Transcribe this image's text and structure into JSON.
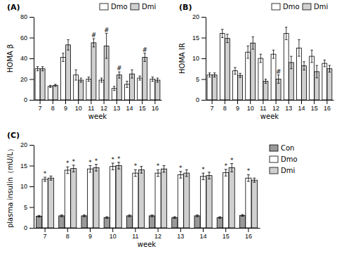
{
  "chart_data": [
    {
      "type": "bar",
      "title": "(A)",
      "x_label": "week",
      "y_label": "HOMA β",
      "categories": [
        7,
        8,
        9,
        10,
        11,
        12,
        13,
        14,
        15,
        16
      ],
      "series": [
        {
          "name": "Dmo",
          "color": "white",
          "values": [
            30,
            13,
            41,
            24,
            20,
            19,
            11,
            15,
            21,
            20
          ],
          "errors": [
            2,
            1,
            4,
            5,
            2,
            2,
            2,
            3,
            2,
            2
          ]
        },
        {
          "name": "Dmi",
          "color": "#d0d0d0",
          "values": [
            30,
            14,
            53,
            19,
            55,
            52,
            24,
            25,
            41,
            19
          ],
          "errors": [
            2,
            1,
            5,
            2,
            4,
            12,
            3,
            4,
            4,
            2
          ]
        }
      ],
      "annotations": [
        {
          "text": "#",
          "category": 11,
          "series": "Dmi"
        },
        {
          "text": "#",
          "category": 12,
          "series": "Dmi"
        },
        {
          "text": "#",
          "category": 13,
          "series": "Dmi"
        },
        {
          "text": "#",
          "category": 15,
          "series": "Dmi"
        }
      ],
      "ylim": [
        0,
        80
      ],
      "yticks": [
        0,
        20,
        40,
        60,
        80
      ],
      "legend": "upper right"
    },
    {
      "type": "bar",
      "title": "(B)",
      "x_label": "week",
      "y_label": "HOMA IR",
      "categories": [
        7,
        8,
        9,
        10,
        11,
        12,
        13,
        14,
        15,
        16
      ],
      "series": [
        {
          "name": "Dmo",
          "color": "white",
          "values": [
            6.0,
            16.0,
            7.0,
            11.5,
            10.0,
            11.0,
            16.0,
            12.5,
            10.5,
            8.8
          ],
          "errors": [
            0.5,
            1.0,
            0.8,
            1.5,
            1.0,
            1.0,
            1.5,
            2.0,
            1.5,
            0.8
          ]
        },
        {
          "name": "Dmi",
          "color": "#d0d0d0",
          "values": [
            6.0,
            14.8,
            5.9,
            13.7,
            4.5,
            5.0,
            9.0,
            8.2,
            6.8,
            7.5
          ],
          "errors": [
            0.5,
            1.0,
            0.5,
            1.5,
            0.5,
            1.0,
            1.5,
            1.0,
            1.5,
            0.8
          ]
        }
      ],
      "annotations": [
        {
          "text": "#",
          "category": 12,
          "series": "Dmi"
        }
      ],
      "ylim": [
        0,
        20
      ],
      "yticks": [
        0,
        5,
        10,
        15,
        20
      ],
      "legend": "upper right"
    },
    {
      "type": "bar",
      "title": "(C)",
      "x_label": "week",
      "y_label": "plasma insulin（mU/L）",
      "categories": [
        7,
        8,
        9,
        10,
        11,
        12,
        13,
        14,
        15,
        16
      ],
      "series": [
        {
          "name": "Con",
          "color": "#999999",
          "values": [
            2.8,
            2.9,
            2.9,
            2.5,
            2.9,
            2.9,
            2.5,
            2.9,
            2.5,
            3.0
          ],
          "errors": [
            0.2,
            0.2,
            0.2,
            0.2,
            0.2,
            0.2,
            0.2,
            0.2,
            0.2,
            0.2
          ]
        },
        {
          "name": "Dmo",
          "color": "white",
          "values": [
            11.7,
            13.9,
            14.2,
            14.8,
            13.2,
            13.2,
            12.8,
            12.4,
            13.3,
            12.0
          ],
          "errors": [
            0.5,
            0.8,
            0.8,
            0.8,
            0.8,
            0.8,
            0.8,
            0.8,
            0.8,
            0.8
          ]
        },
        {
          "name": "Dmi",
          "color": "#d0d0d0",
          "values": [
            12.0,
            14.3,
            14.5,
            15.0,
            14.0,
            14.2,
            13.2,
            12.6,
            14.5,
            11.5
          ],
          "errors": [
            0.5,
            0.8,
            0.8,
            0.8,
            0.8,
            0.8,
            0.8,
            0.8,
            1.0,
            0.5
          ]
        }
      ],
      "annotations": [
        {
          "text": "*",
          "category": 7,
          "series": "Dmo"
        },
        {
          "text": "*",
          "category": 8,
          "series": "Dmo"
        },
        {
          "text": "*",
          "category": 9,
          "series": "Dmo"
        },
        {
          "text": "*",
          "category": 10,
          "series": "Dmo"
        },
        {
          "text": "*",
          "category": 11,
          "series": "Dmo"
        },
        {
          "text": "*",
          "category": 12,
          "series": "Dmo"
        },
        {
          "text": "*",
          "category": 13,
          "series": "Dmo"
        },
        {
          "text": "*",
          "category": 14,
          "series": "Dmo"
        },
        {
          "text": "*",
          "category": 15,
          "series": "Dmo"
        },
        {
          "text": "*",
          "category": 16,
          "series": "Dmo"
        },
        {
          "text": "*",
          "category": 8,
          "series": "Dmi"
        },
        {
          "text": "*",
          "category": 9,
          "series": "Dmi"
        },
        {
          "text": "*",
          "category": 10,
          "series": "Dmi"
        },
        {
          "text": "*",
          "category": 15,
          "series": "Dmi"
        }
      ],
      "ylim": [
        0,
        20
      ],
      "yticks": [
        0,
        5,
        10,
        15,
        20
      ],
      "legend": "right"
    }
  ]
}
